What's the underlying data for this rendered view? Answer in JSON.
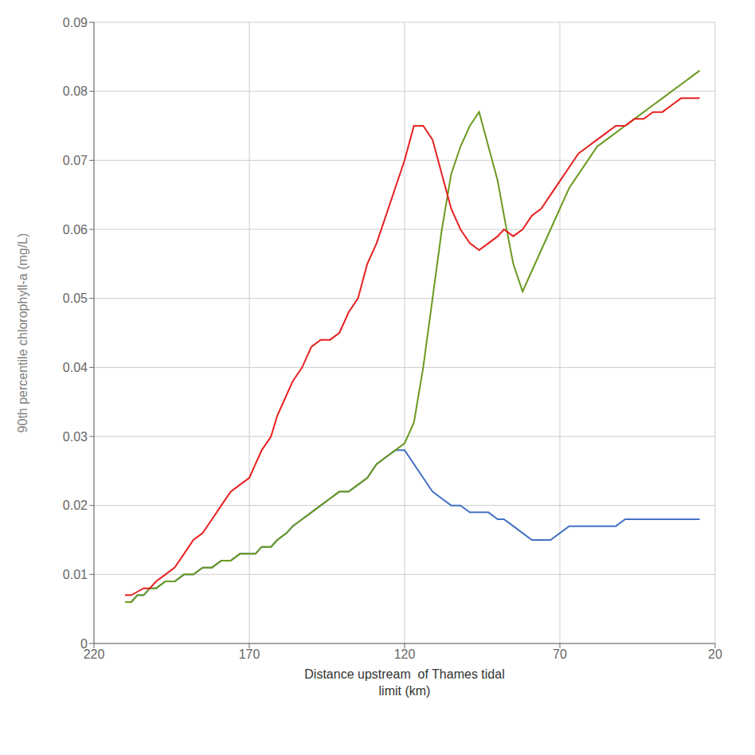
{
  "chart_data": {
    "type": "line",
    "title": "",
    "xlabel": "Distance upstream  of Thames tidal\nlimit (km)",
    "ylabel": "90th percentile chlorophyll-a (mg/L)",
    "xlim": [
      220,
      20
    ],
    "ylim": [
      0,
      0.09
    ],
    "xticks": [
      220,
      170,
      120,
      70,
      20
    ],
    "yticks": [
      0,
      0.01,
      0.02,
      0.03,
      0.04,
      0.05,
      0.06,
      0.07,
      0.08,
      0.09
    ],
    "grid": true,
    "x": [
      210,
      208,
      206,
      204,
      202,
      200,
      197,
      194,
      191,
      188,
      185,
      182,
      179,
      176,
      173,
      170,
      168,
      166,
      163,
      161,
      158,
      156,
      153,
      150,
      147,
      144,
      141,
      138,
      135,
      132,
      129,
      126,
      123,
      120,
      117,
      114,
      111,
      108,
      105,
      102,
      99,
      96,
      93,
      90,
      88,
      85,
      82,
      79,
      76,
      73,
      70,
      67,
      64,
      61,
      58,
      55,
      52,
      49,
      46,
      43,
      40,
      37,
      34,
      31,
      28,
      25
    ],
    "series": [
      {
        "color": "#4472c4",
        "values": [
          0.006,
          0.006,
          0.007,
          0.007,
          0.008,
          0.008,
          0.009,
          0.009,
          0.01,
          0.01,
          0.011,
          0.011,
          0.012,
          0.012,
          0.013,
          0.013,
          0.013,
          0.014,
          0.014,
          0.015,
          0.016,
          0.017,
          0.018,
          0.019,
          0.02,
          0.021,
          0.022,
          0.022,
          0.023,
          0.024,
          0.026,
          0.027,
          0.028,
          0.028,
          0.026,
          0.024,
          0.022,
          0.021,
          0.02,
          0.02,
          0.019,
          0.019,
          0.019,
          0.018,
          0.018,
          0.017,
          0.016,
          0.015,
          0.015,
          0.015,
          0.016,
          0.017,
          0.017,
          0.017,
          0.017,
          0.017,
          0.017,
          0.018,
          0.018,
          0.018,
          0.018,
          0.018,
          0.018,
          0.018,
          0.018,
          0.018
        ]
      },
      {
        "color": "#6a9a1f",
        "values": [
          0.006,
          0.006,
          0.007,
          0.007,
          0.008,
          0.008,
          0.009,
          0.009,
          0.01,
          0.01,
          0.011,
          0.011,
          0.012,
          0.012,
          0.013,
          0.013,
          0.013,
          0.014,
          0.014,
          0.015,
          0.016,
          0.017,
          0.018,
          0.019,
          0.02,
          0.021,
          0.022,
          0.022,
          0.023,
          0.024,
          0.026,
          0.027,
          0.028,
          0.029,
          0.032,
          0.04,
          0.05,
          0.06,
          0.068,
          0.072,
          0.075,
          0.077,
          0.072,
          0.067,
          0.062,
          0.055,
          0.051,
          0.054,
          0.057,
          0.06,
          0.063,
          0.066,
          0.068,
          0.07,
          0.072,
          0.073,
          0.074,
          0.075,
          0.076,
          0.077,
          0.078,
          0.079,
          0.08,
          0.081,
          0.082,
          0.083
        ]
      },
      {
        "color": "#e82020",
        "values": [
          0.007,
          0.007,
          0.0075,
          0.008,
          0.008,
          0.009,
          0.01,
          0.011,
          0.013,
          0.015,
          0.016,
          0.018,
          0.02,
          0.022,
          0.023,
          0.024,
          0.026,
          0.028,
          0.03,
          0.033,
          0.036,
          0.038,
          0.04,
          0.043,
          0.044,
          0.044,
          0.045,
          0.048,
          0.05,
          0.055,
          0.058,
          0.062,
          0.066,
          0.07,
          0.075,
          0.075,
          0.073,
          0.068,
          0.063,
          0.06,
          0.058,
          0.057,
          0.058,
          0.059,
          0.06,
          0.059,
          0.06,
          0.062,
          0.063,
          0.065,
          0.067,
          0.069,
          0.071,
          0.072,
          0.073,
          0.074,
          0.075,
          0.075,
          0.076,
          0.076,
          0.077,
          0.077,
          0.078,
          0.079,
          0.079,
          0.079
        ]
      }
    ]
  }
}
